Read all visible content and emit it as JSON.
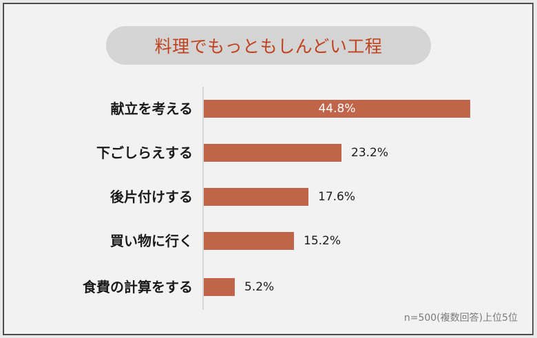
{
  "title": "料理でもっともしんどい工程",
  "note": "n=500(複数回答)上位5位",
  "colors": {
    "bar": "#c0654a",
    "title": "#c0431f",
    "pill": "#d4d4d4",
    "background": "#f2f2f2"
  },
  "bars": [
    {
      "label": "献立を考える",
      "value": 44.8,
      "value_text": "44.8%"
    },
    {
      "label": "下ごしらえする",
      "value": 23.2,
      "value_text": "23.2%"
    },
    {
      "label": "後片付けする",
      "value": 17.6,
      "value_text": "17.6%"
    },
    {
      "label": "買い物に行く",
      "value": 15.2,
      "value_text": "15.2%"
    },
    {
      "label": "食費の計算をする",
      "value": 5.2,
      "value_text": "5.2%"
    }
  ],
  "chart_data": {
    "type": "bar",
    "orientation": "horizontal",
    "title": "料理でもっともしんどい工程",
    "categories": [
      "献立を考える",
      "下ごしらえする",
      "後片付けする",
      "買い物に行く",
      "食費の計算をする"
    ],
    "values": [
      44.8,
      23.2,
      17.6,
      15.2,
      5.2
    ],
    "unit": "%",
    "xlabel": "",
    "ylabel": "",
    "annotation": "n=500(複数回答)上位5位",
    "grid": false,
    "legend": null
  }
}
